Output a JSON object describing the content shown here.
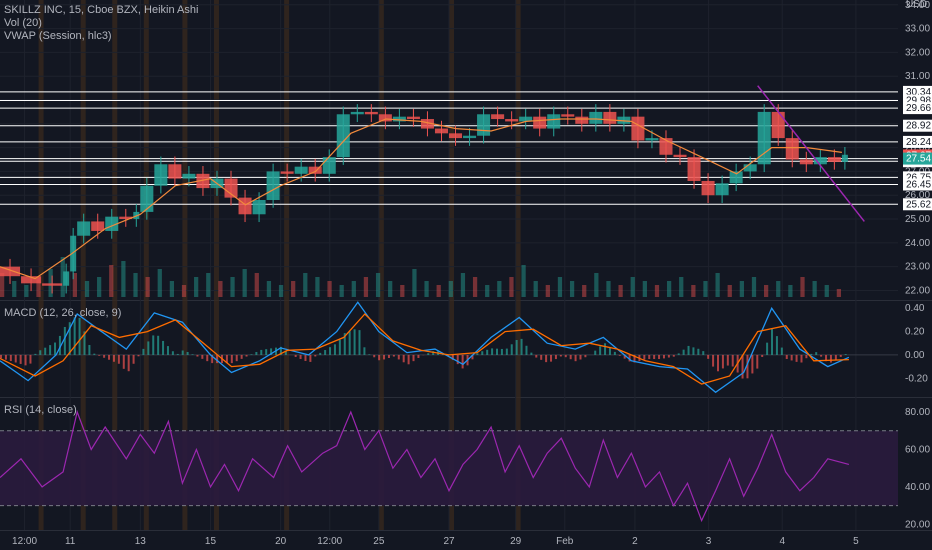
{
  "header": {
    "title": "SKILLZ INC, 15, Cboe BZX, Heikin Ashi",
    "vol": "Vol (20)",
    "vwap": "VWAP (Session, hlc3)"
  },
  "currency": "USD",
  "colors": {
    "background": "#131722",
    "grid": "#1e222d",
    "up": "#26a69a",
    "down": "#ef5350",
    "vwap": "#f28a3c",
    "macd_line": "#2196f3",
    "signal_line": "#ff6d00",
    "rsi_line": "#9c27b0",
    "rsi_band": "#2a1b3d",
    "trendline": "#9c27b0",
    "session_highlight": "#3a2a1e",
    "horizontal_line": "#ffffff"
  },
  "chart_data": [
    {
      "type": "candlestick",
      "name": "price",
      "y_ticks": [
        "34.00",
        "33.00",
        "32.00",
        "31.00",
        "30.00",
        "29.00",
        "28.00",
        "27.00",
        "26.00",
        "25.00",
        "24.00",
        "23.00",
        "22.00"
      ],
      "ylim": [
        21.6,
        34.2
      ],
      "horizontal_levels": [
        "30.34",
        "29.98",
        "29.66",
        "28.92",
        "28.24",
        "27.54",
        "27.43",
        "26.75",
        "26.45",
        "25.62"
      ],
      "current_price": "27.67",
      "price_tags": [
        {
          "value": "27.67",
          "color": "#ef5350"
        },
        {
          "value": "27.54",
          "color": "#26a69a"
        }
      ],
      "trendline": {
        "from": [
          27.0,
          30.6
        ],
        "to": [
          30.8,
          24.9
        ]
      },
      "price_path": [
        [
          0.0,
          23.0
        ],
        [
          0.3,
          22.6
        ],
        [
          0.6,
          22.3
        ],
        [
          0.9,
          22.2
        ],
        [
          1.0,
          22.8
        ],
        [
          1.1,
          24.3
        ],
        [
          1.3,
          24.9
        ],
        [
          1.5,
          24.5
        ],
        [
          1.7,
          25.1
        ],
        [
          1.9,
          25.0
        ],
        [
          2.0,
          25.3
        ],
        [
          2.2,
          26.4
        ],
        [
          2.4,
          27.3
        ],
        [
          2.6,
          26.7
        ],
        [
          2.8,
          26.9
        ],
        [
          3.0,
          26.3
        ],
        [
          3.2,
          26.7
        ],
        [
          3.4,
          25.9
        ],
        [
          3.6,
          25.2
        ],
        [
          3.8,
          25.8
        ],
        [
          4.0,
          27.0
        ],
        [
          4.2,
          26.9
        ],
        [
          4.4,
          27.2
        ],
        [
          4.6,
          26.9
        ],
        [
          4.8,
          27.6
        ],
        [
          5.0,
          29.4
        ],
        [
          5.2,
          29.5
        ],
        [
          5.4,
          29.4
        ],
        [
          5.6,
          29.1
        ],
        [
          5.8,
          29.3
        ],
        [
          6.0,
          29.2
        ],
        [
          6.2,
          28.8
        ],
        [
          6.4,
          28.6
        ],
        [
          6.6,
          28.4
        ],
        [
          6.8,
          28.5
        ],
        [
          7.0,
          29.4
        ],
        [
          7.2,
          29.2
        ],
        [
          7.4,
          29.1
        ],
        [
          7.6,
          29.3
        ],
        [
          7.8,
          28.8
        ],
        [
          8.0,
          29.4
        ],
        [
          8.2,
          29.3
        ],
        [
          8.4,
          29.0
        ],
        [
          8.6,
          29.5
        ],
        [
          8.8,
          29.0
        ],
        [
          9.0,
          29.3
        ],
        [
          9.2,
          28.3
        ],
        [
          9.4,
          28.4
        ],
        [
          9.6,
          27.7
        ],
        [
          9.8,
          27.6
        ],
        [
          10.0,
          26.6
        ],
        [
          10.2,
          26.0
        ],
        [
          10.4,
          26.5
        ],
        [
          10.6,
          27.0
        ],
        [
          10.8,
          27.3
        ],
        [
          11.0,
          29.5
        ],
        [
          11.2,
          28.4
        ],
        [
          11.4,
          27.5
        ],
        [
          11.6,
          27.3
        ],
        [
          11.8,
          27.6
        ],
        [
          12.0,
          27.4
        ],
        [
          12.1,
          27.7
        ]
      ],
      "vwap_path": [
        [
          0.0,
          23.0
        ],
        [
          0.5,
          22.5
        ],
        [
          1.0,
          23.5
        ],
        [
          1.5,
          24.6
        ],
        [
          2.0,
          25.2
        ],
        [
          2.5,
          26.4
        ],
        [
          3.0,
          26.7
        ],
        [
          3.5,
          25.6
        ],
        [
          4.0,
          26.4
        ],
        [
          4.5,
          27.0
        ],
        [
          5.0,
          28.6
        ],
        [
          5.5,
          29.2
        ],
        [
          6.0,
          29.1
        ],
        [
          6.5,
          28.8
        ],
        [
          7.0,
          28.7
        ],
        [
          7.5,
          29.1
        ],
        [
          8.0,
          29.2
        ],
        [
          8.5,
          29.2
        ],
        [
          9.0,
          29.1
        ],
        [
          9.5,
          28.3
        ],
        [
          10.0,
          27.6
        ],
        [
          10.5,
          26.9
        ],
        [
          11.0,
          28.0
        ],
        [
          11.5,
          28.0
        ],
        [
          12.0,
          27.8
        ]
      ]
    },
    {
      "type": "bar",
      "name": "MACD (12, 26, close, 9)",
      "y_ticks": [
        "0.40",
        "0.20",
        "0.00",
        "-0.20"
      ],
      "ylim": [
        -0.36,
        0.47
      ],
      "macd_path": [
        [
          0.0,
          -0.05
        ],
        [
          0.4,
          -0.22
        ],
        [
          0.8,
          0.0
        ],
        [
          1.1,
          0.35
        ],
        [
          1.4,
          0.22
        ],
        [
          1.8,
          0.05
        ],
        [
          2.2,
          0.36
        ],
        [
          2.6,
          0.28
        ],
        [
          3.0,
          0.0
        ],
        [
          3.3,
          -0.15
        ],
        [
          3.7,
          -0.05
        ],
        [
          4.0,
          0.06
        ],
        [
          4.4,
          0.0
        ],
        [
          4.8,
          0.2
        ],
        [
          5.1,
          0.45
        ],
        [
          5.4,
          0.2
        ],
        [
          5.8,
          0.02
        ],
        [
          6.2,
          0.05
        ],
        [
          6.6,
          -0.08
        ],
        [
          7.0,
          0.15
        ],
        [
          7.4,
          0.32
        ],
        [
          7.8,
          0.1
        ],
        [
          8.2,
          0.05
        ],
        [
          8.6,
          0.15
        ],
        [
          9.0,
          -0.05
        ],
        [
          9.4,
          -0.1
        ],
        [
          9.8,
          -0.12
        ],
        [
          10.2,
          -0.32
        ],
        [
          10.6,
          -0.15
        ],
        [
          11.0,
          0.4
        ],
        [
          11.4,
          0.05
        ],
        [
          11.8,
          -0.1
        ],
        [
          12.1,
          -0.02
        ]
      ],
      "signal_path": [
        [
          0.0,
          -0.03
        ],
        [
          0.5,
          -0.18
        ],
        [
          0.9,
          -0.05
        ],
        [
          1.3,
          0.25
        ],
        [
          1.7,
          0.15
        ],
        [
          2.1,
          0.2
        ],
        [
          2.5,
          0.3
        ],
        [
          2.9,
          0.1
        ],
        [
          3.3,
          -0.1
        ],
        [
          3.7,
          -0.08
        ],
        [
          4.1,
          0.04
        ],
        [
          4.5,
          0.05
        ],
        [
          4.9,
          0.15
        ],
        [
          5.2,
          0.35
        ],
        [
          5.6,
          0.12
        ],
        [
          6.0,
          0.04
        ],
        [
          6.4,
          0.0
        ],
        [
          6.8,
          0.02
        ],
        [
          7.2,
          0.2
        ],
        [
          7.6,
          0.22
        ],
        [
          8.0,
          0.08
        ],
        [
          8.4,
          0.1
        ],
        [
          8.8,
          0.05
        ],
        [
          9.2,
          -0.05
        ],
        [
          9.6,
          -0.1
        ],
        [
          10.0,
          -0.25
        ],
        [
          10.4,
          -0.18
        ],
        [
          10.8,
          0.2
        ],
        [
          11.2,
          0.25
        ],
        [
          11.6,
          -0.05
        ],
        [
          12.1,
          -0.04
        ]
      ]
    },
    {
      "type": "line",
      "name": "RSI (14, close)",
      "y_ticks": [
        "80.00",
        "60.00",
        "40.00",
        "20.00"
      ],
      "ylim": [
        17,
        88
      ],
      "upper_band": 70,
      "lower_band": 30,
      "rsi_path": [
        [
          0.0,
          45
        ],
        [
          0.3,
          55
        ],
        [
          0.6,
          40
        ],
        [
          0.9,
          48
        ],
        [
          1.1,
          80
        ],
        [
          1.3,
          60
        ],
        [
          1.5,
          72
        ],
        [
          1.8,
          55
        ],
        [
          2.0,
          68
        ],
        [
          2.2,
          58
        ],
        [
          2.4,
          75
        ],
        [
          2.6,
          42
        ],
        [
          2.8,
          60
        ],
        [
          3.0,
          40
        ],
        [
          3.2,
          52
        ],
        [
          3.4,
          38
        ],
        [
          3.6,
          55
        ],
        [
          3.9,
          45
        ],
        [
          4.1,
          62
        ],
        [
          4.3,
          48
        ],
        [
          4.6,
          58
        ],
        [
          4.8,
          62
        ],
        [
          5.0,
          80
        ],
        [
          5.2,
          60
        ],
        [
          5.4,
          70
        ],
        [
          5.6,
          50
        ],
        [
          5.8,
          60
        ],
        [
          6.0,
          45
        ],
        [
          6.2,
          55
        ],
        [
          6.4,
          38
        ],
        [
          6.6,
          52
        ],
        [
          6.8,
          60
        ],
        [
          7.0,
          72
        ],
        [
          7.2,
          48
        ],
        [
          7.4,
          62
        ],
        [
          7.6,
          45
        ],
        [
          7.8,
          58
        ],
        [
          8.0,
          66
        ],
        [
          8.2,
          50
        ],
        [
          8.4,
          40
        ],
        [
          8.6,
          65
        ],
        [
          8.8,
          45
        ],
        [
          9.0,
          58
        ],
        [
          9.2,
          40
        ],
        [
          9.4,
          48
        ],
        [
          9.6,
          30
        ],
        [
          9.8,
          42
        ],
        [
          10.0,
          22
        ],
        [
          10.2,
          38
        ],
        [
          10.4,
          55
        ],
        [
          10.6,
          35
        ],
        [
          10.8,
          50
        ],
        [
          11.0,
          68
        ],
        [
          11.2,
          48
        ],
        [
          11.4,
          38
        ],
        [
          11.6,
          45
        ],
        [
          11.8,
          55
        ],
        [
          12.1,
          52
        ]
      ]
    }
  ],
  "volume": [
    0.6,
    0.4,
    0.3,
    0.5,
    0.7,
    1.0,
    0.6,
    0.4,
    0.5,
    0.8,
    0.9,
    0.6,
    0.5,
    0.7,
    0.4,
    0.3,
    0.5,
    0.6,
    0.4,
    0.5,
    0.7,
    0.6,
    0.4,
    0.3,
    0.4,
    0.6,
    0.5,
    0.4,
    0.3,
    0.4,
    0.5,
    0.6,
    0.4,
    0.3,
    0.7,
    0.4,
    0.3,
    0.4,
    0.6,
    0.5,
    0.3,
    0.4,
    0.5,
    0.8,
    0.4,
    0.3,
    0.5,
    0.4,
    0.3,
    0.6,
    0.4,
    0.3,
    0.5,
    0.4,
    0.3,
    0.4,
    0.5,
    0.3,
    0.4,
    0.6,
    0.3,
    0.4,
    0.5,
    0.3,
    0.4,
    0.3,
    0.5,
    0.4,
    0.3,
    0.2
  ],
  "x_axis": {
    "labels": [
      {
        "text": "12:00",
        "pos": 0.35
      },
      {
        "text": "11",
        "pos": 1.0
      },
      {
        "text": "13",
        "pos": 2.0
      },
      {
        "text": "15",
        "pos": 3.0
      },
      {
        "text": "20",
        "pos": 4.0
      },
      {
        "text": "12:00",
        "pos": 4.7
      },
      {
        "text": "25",
        "pos": 5.4
      },
      {
        "text": "27",
        "pos": 6.4
      },
      {
        "text": "29",
        "pos": 7.35
      },
      {
        "text": "Feb",
        "pos": 8.05
      },
      {
        "text": "2",
        "pos": 9.05
      },
      {
        "text": "3",
        "pos": 10.1
      },
      {
        "text": "4",
        "pos": 11.15
      },
      {
        "text": "5",
        "pos": 12.2
      }
    ]
  },
  "panes": {
    "macd_label": "MACD (12, 26, close, 9)",
    "rsi_label": "RSI (14, close)"
  }
}
